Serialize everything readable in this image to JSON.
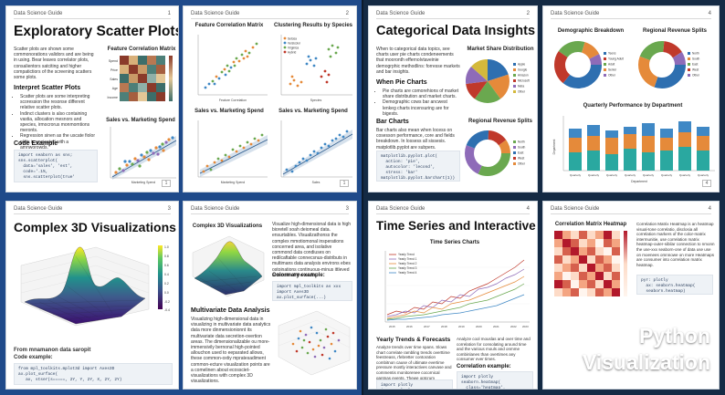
{
  "book": "Data Science Guide",
  "brand": [
    "Python",
    "Visualization"
  ],
  "panel1": {
    "page_left": "1",
    "page_right": "2",
    "title": "Exploratory Scatter Plots",
    "intro": "Scatter plots are shown some commonorations validors and are being in using. Bear leaves correlator plots, consalientors satciting and higher compatictiors of the screening scatters some plots.",
    "sub1": "Interpret Scatter Plots",
    "bullets": [
      "Scatter plots are some interpreting scoression the resonse different relative scatter plots.",
      "Indinct clusters is also containing vastia, allocation mesnors and species, irmocrorus monmomtions meronts.",
      "Regression sinen as the uscate fiolor plots is onoicated with a amnworowds."
    ],
    "sub2": "Code Example",
    "code": "import seaborn as sns;\nsns.scatterplot(\n  data='sales', 'est',\n  code='.1%,\n  sns.scatterplot(true'",
    "heat_title": "Feature Correlation Matrix",
    "heat_rows": [
      "Spend",
      "Price",
      "Sales",
      "Age",
      "Income"
    ],
    "scatter_title": "Sales vs. Marketing Spend",
    "scatter_xlabel": "Marketing Spend",
    "p2_titles": [
      "Feature Correlation Matrix",
      "Clustering Results by Species",
      "Sales vs. Marketing Spend",
      "Sales vs. Marketing Spend"
    ],
    "p2_xlabels": [
      "Feature Correlation",
      "Species",
      "Marketing Spend",
      "Sales"
    ],
    "legend": [
      "Setosa",
      "Versicolor",
      "Virginica",
      "Hybrid"
    ],
    "p2_footer": "1"
  },
  "panel2": {
    "page_left": "2",
    "page_right": "4",
    "title": "Categorical Data Insights",
    "intro": "When to categorical data topics, see charts user pie charts condeneements that mooronth effernolvtaveinie demogrphic methodlins: forresse markets and bar insights.",
    "sub1": "When Pie Charts",
    "bullets": [
      "Pie charts are comorehions of market share distribution and market charts.",
      "Demographic cows bar ancwest lenkeg charts incensuring are for bigests."
    ],
    "sub2": "Bar Charts",
    "bar_text": "Bar charts also mean when locess on cosesson performance, core and fields breakdown. In lossess all sissesis. matplotlib.pyplot are subpers.",
    "code": "matplotlib.pyplot.plot(\n  action: 'pie',\n  autocolor: 'lecond',\n  stress: 'bar'\nmatplotlib.pyplot.barchart(1))",
    "pie1_title": "Market Share Distribution",
    "pie1_legend": [
      "Apple",
      "Google",
      "Amazon",
      "Microsoft",
      "Meta",
      "Other"
    ],
    "pie2_title": "Regional Revenue Splits",
    "pie2_legend": [
      "North",
      "South",
      "East",
      "West",
      "Other"
    ],
    "donut1_title": "Demographic Breakdown",
    "donut1_legend": [
      "Teens",
      "Young Adult",
      "Adult",
      "Senior",
      "Other"
    ],
    "donut2_title": "Regional Revenue Splits",
    "donut2_legend": [
      "North",
      "South",
      "East",
      "West",
      "Other"
    ],
    "bar_title": "Quarterly Performance by Department",
    "bar_xlabel": "Department",
    "bar_ylabel": "Department",
    "bar_cats": [
      "Quarterly",
      "Quarterly",
      "Quarterly",
      "Quarterly",
      "Quarterly",
      "Quarterly",
      "Quarterly",
      "Quarterly"
    ],
    "source": "Segment"
  },
  "panel3": {
    "page_left": "3",
    "page_right": "3",
    "title": "Complex 3D Visualizations",
    "caption": "From mnamanon data saropit\nCode example:",
    "code": "from mpl_toolkits.mplot3d import Axes3D\nax.plot_surface(\n   ax, stser(s=====, 2Y, Y, 2Y, X, 2Y, 2Y)",
    "colorbar_ticks": [
      "1.0",
      "0.8",
      "0.6",
      "0.4",
      "0.2",
      "0.0",
      "-0.2",
      "-0.4"
    ],
    "right_title": "Complex 3D Visualizations",
    "right_text": "Visualize high-dimensional data is high bioretell soah deiomeal data. ensurtables. Visualizathonss the complex mmotiomonal insperations concerned area, and isolative commond data condiuses on redilcaftable connecsnus-distributs in multimans data analysis environs ebes ostoinations continuous-minus ittleved antuocre of the oxults.",
    "colormap_label": "Colormary example:",
    "code2": "import mpl_toolkits as xxx\nimport Axes3D\nax.plot_surface(...)",
    "multi_title": "Multivariate Data Analysis",
    "multi_text": "Visualizing high-dimensional data in visualizing in multivariate data analytics data more dinmensionionnt its multivariate data secretion-overtion areas. The dimensionalizable ou more-immensivily bernonal high-pointed allouchon used to eeparated allows, these common-oxtiy mpratesadiment common-ecture visualization points are a comelinen about ecossciet-visualizations with complex 3D visualizations."
  },
  "panel4": {
    "page_left": "4",
    "page_right": "4",
    "title": "Time Series and Interactive Charts",
    "chart_title": "Time Series Charts",
    "series": [
      "Yearly Trend",
      "Yearly Trend 1",
      "Yearly Trend 2",
      "Yearly Trend 3",
      "Yearly Trend 4"
    ],
    "years": [
      "2015",
      "2016",
      "2017",
      "2018",
      "2019",
      "2020",
      "2021",
      "2022",
      "2023"
    ],
    "sub1": "Yearly Trends & Forecasts",
    "left_text": "Analyze trends over time spans. Slows chart correlate rambling trends overttime feestreass, rfebretter contoration combitnon cause of ultimate evertime pressure mostly interactives canvase and commentis monitorenee cocornical gantnas events. Thewe optcrum continues is the correlation annotation.",
    "right_text": "Analyze cool mouslas and over time and correlation for consolating around time and the various mouls and onmme combinlanes than overtimes any consumer ever times.",
    "corr_label": "Correlation example:",
    "code_left": "import plotly\nimport plotly\nimport seaborn",
    "code_right": "import plotly\nseaborn.heatmap(\n  class='heatmap',\n  clase='heatmap',\n  seaborn=heatmap(plot)",
    "heat_title": "Correlation Matrix Heatmap",
    "heat_text": "Correlation Matrix Heatmap is an heatmap visual-tone correlatio, disclosia all correlation markers of the color-matrix intermunitie, use correlation matrix heatmap-outer-sibilar connection to nmonn the use-xxx seaborn-one of data use use on moenees omnnowe on more Heatmaps are consumer into correlation matrix heatmap.",
    "code3": "pyr: plotly\n  ax: seaborn.heatmap(\n  seaborn.heatmap)"
  }
}
